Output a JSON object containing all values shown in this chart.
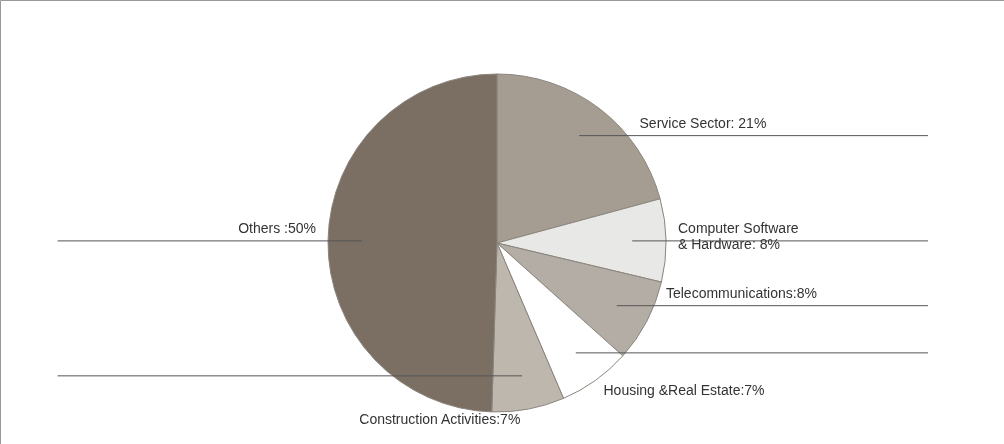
{
  "chart_data": {
    "type": "pie",
    "categories": [
      "Service Sector: 21%",
      "Computer Software\n& Hardware: 8%",
      "Telecommunications:8%",
      "Housing &Real Estate:7%",
      "Construction Activities:7%",
      "Others :50%"
    ],
    "values": [
      21,
      8,
      8,
      7,
      7,
      50
    ],
    "colors": [
      "#a59d92",
      "#e8e8e6",
      "#b3ada5",
      "#ffffff",
      "#bdb7ae",
      "#7a6f62"
    ]
  }
}
